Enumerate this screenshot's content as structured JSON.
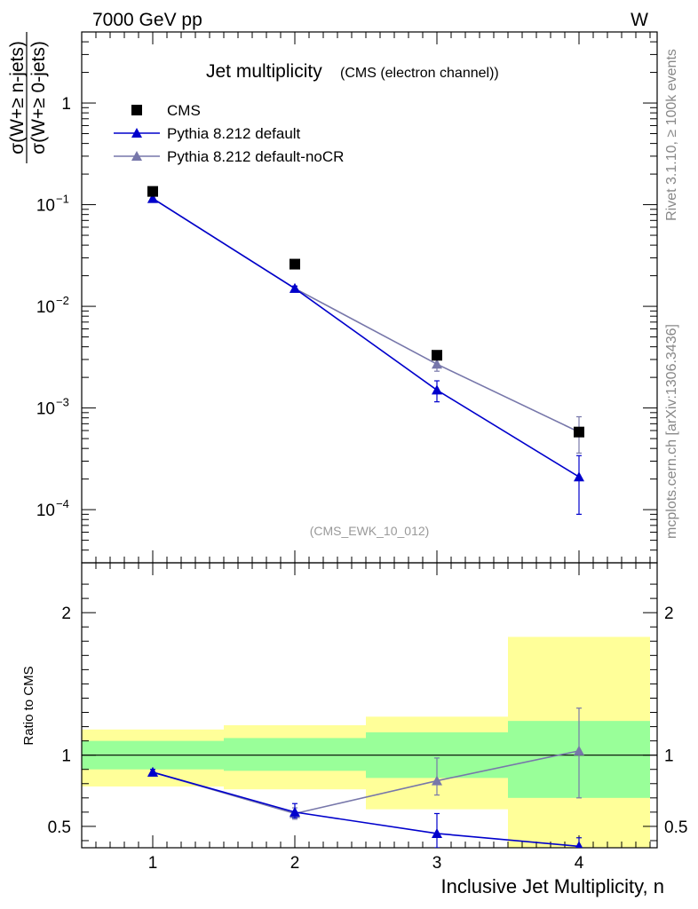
{
  "header": {
    "left": "7000 GeV pp",
    "right": "W"
  },
  "side_labels": {
    "rivet": "Rivet 3.1.10, ≥ 100k events",
    "mcplots": "mcplots.cern.ch [arXiv:1306.3436]"
  },
  "chart_data": [
    {
      "type": "line",
      "title": "Jet multiplicity",
      "subtitle": "(CMS (electron channel))",
      "watermark": "(CMS_EWK_10_012)",
      "ylabel_numerator": "σ(W+≥ n-jets)",
      "ylabel_denominator": "σ(W+≥ 0-jets)",
      "yscale": "log",
      "ylim": [
        3e-05,
        5
      ],
      "xlim": [
        0.5,
        4.55
      ],
      "x": [
        1,
        2,
        3,
        4
      ],
      "x_ticks": [
        1,
        2,
        3,
        4
      ],
      "y_ticks": [
        {
          "value": 1,
          "label": "1"
        },
        {
          "value": 0.1,
          "label": "10",
          "exp": "−1"
        },
        {
          "value": 0.01,
          "label": "10",
          "exp": "−2"
        },
        {
          "value": 0.001,
          "label": "10",
          "exp": "−3"
        },
        {
          "value": 0.0001,
          "label": "10",
          "exp": "−4"
        }
      ],
      "legend_position": "top-left",
      "series": [
        {
          "name": "CMS",
          "marker": "square",
          "color": "#000000",
          "values": [
            0.135,
            0.026,
            0.0033,
            0.00058
          ]
        },
        {
          "name": "Pythia 8.212 default",
          "marker": "triangle",
          "color": "#0000cc",
          "values": [
            0.115,
            0.015,
            0.0015,
            0.00021
          ],
          "err_low": [
            0.108,
            0.0143,
            0.00115,
            9e-05
          ],
          "err_high": [
            0.122,
            0.0158,
            0.00185,
            0.00034
          ]
        },
        {
          "name": "Pythia 8.212 default-noCR",
          "marker": "triangle",
          "color": "#7777aa",
          "values": [
            0.115,
            0.015,
            0.0027,
            0.00058
          ],
          "err_low": [
            0.108,
            0.0143,
            0.0023,
            0.00036
          ],
          "err_high": [
            0.122,
            0.0158,
            0.0032,
            0.00082
          ]
        }
      ]
    },
    {
      "type": "line",
      "ylabel": "Ratio to CMS",
      "xlabel": "Inclusive Jet Multiplicity, n",
      "ylim": [
        0.35,
        2.35
      ],
      "xlim": [
        0.5,
        4.55
      ],
      "y_ticks_left": [
        "0.5",
        "1",
        "2"
      ],
      "y_ticks_right": [
        "0.5",
        "1",
        "2"
      ],
      "y_tick_values": [
        0.5,
        1,
        2
      ],
      "reference_line": 1,
      "bins": [
        [
          0.5,
          1.5
        ],
        [
          1.5,
          2.5
        ],
        [
          2.5,
          3.5
        ],
        [
          3.5,
          4.5
        ]
      ],
      "band_yellow": [
        [
          0.78,
          1.18
        ],
        [
          0.76,
          1.21
        ],
        [
          0.62,
          1.27
        ],
        [
          0.35,
          1.83
        ]
      ],
      "band_green": [
        [
          0.9,
          1.1
        ],
        [
          0.89,
          1.12
        ],
        [
          0.84,
          1.16
        ],
        [
          0.7,
          1.24
        ]
      ],
      "x": [
        1,
        2,
        3,
        4
      ],
      "series": [
        {
          "name": "Pythia 8.212 default",
          "color": "#0000cc",
          "values": [
            0.88,
            0.6,
            0.45,
            0.36
          ],
          "err_low": [
            0.86,
            0.56,
            0.35,
            0.3
          ],
          "err_high": [
            0.9,
            0.66,
            0.59,
            0.42
          ]
        },
        {
          "name": "Pythia 8.212 default-noCR",
          "color": "#7777aa",
          "values": [
            0.88,
            0.59,
            0.82,
            1.03
          ],
          "err_low": [
            0.86,
            0.55,
            0.72,
            0.7
          ],
          "err_high": [
            0.9,
            0.63,
            0.98,
            1.33
          ]
        }
      ]
    }
  ]
}
